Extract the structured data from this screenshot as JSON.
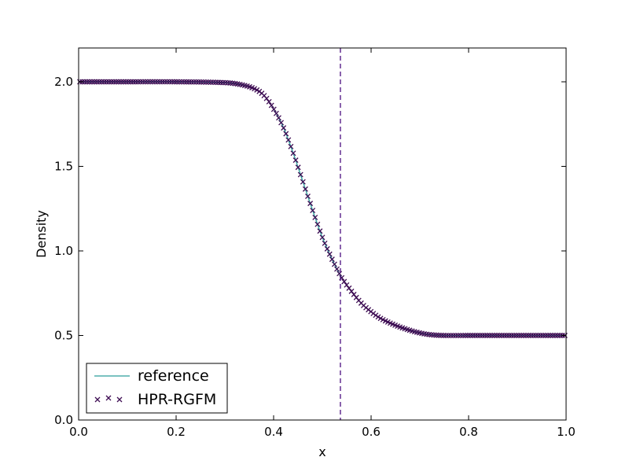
{
  "chart_data": {
    "type": "line",
    "xlabel": "x",
    "ylabel": "Density",
    "xlim": [
      0.0,
      1.0
    ],
    "ylim": [
      0.0,
      2.2
    ],
    "xticks": [
      0.0,
      0.2,
      0.4,
      0.6,
      0.8,
      1.0
    ],
    "xtick_labels": [
      "0.0",
      "0.2",
      "0.4",
      "0.6",
      "0.8",
      "1.0"
    ],
    "yticks": [
      0.0,
      0.5,
      1.0,
      1.5,
      2.0
    ],
    "ytick_labels": [
      "0.0",
      "0.5",
      "1.0",
      "1.5",
      "2.0"
    ],
    "grid": false,
    "legend_position": "lower-left",
    "interface_line": {
      "x": 0.537,
      "style": "dashed",
      "color": "#4b0c7f"
    },
    "series": [
      {
        "name": "reference",
        "kind": "line",
        "color": "#2a9d9a",
        "x": [
          0.0,
          0.1,
          0.2,
          0.3,
          0.33,
          0.36,
          0.38,
          0.4,
          0.42,
          0.44,
          0.46,
          0.48,
          0.5,
          0.52,
          0.54,
          0.56,
          0.58,
          0.6,
          0.62,
          0.65,
          0.68,
          0.7,
          0.72,
          0.75,
          0.8,
          0.9,
          1.0
        ],
        "y": [
          2.0,
          2.0,
          2.0,
          1.995,
          1.985,
          1.96,
          1.92,
          1.84,
          1.73,
          1.58,
          1.41,
          1.24,
          1.08,
          0.95,
          0.84,
          0.76,
          0.69,
          0.64,
          0.6,
          0.56,
          0.53,
          0.515,
          0.505,
          0.5,
          0.5,
          0.5,
          0.5
        ]
      },
      {
        "name": "HPR-RGFM",
        "kind": "scatter",
        "marker": "x",
        "color": "#3d0b52",
        "x": [
          0.0,
          0.1,
          0.2,
          0.3,
          0.33,
          0.36,
          0.38,
          0.4,
          0.42,
          0.44,
          0.46,
          0.48,
          0.5,
          0.52,
          0.54,
          0.56,
          0.58,
          0.6,
          0.62,
          0.65,
          0.68,
          0.7,
          0.72,
          0.75,
          0.8,
          0.9,
          1.0
        ],
        "y": [
          2.0,
          2.0,
          2.0,
          1.995,
          1.985,
          1.96,
          1.92,
          1.84,
          1.73,
          1.58,
          1.41,
          1.24,
          1.08,
          0.95,
          0.84,
          0.76,
          0.69,
          0.64,
          0.6,
          0.56,
          0.53,
          0.515,
          0.505,
          0.5,
          0.5,
          0.5,
          0.5
        ]
      }
    ]
  }
}
